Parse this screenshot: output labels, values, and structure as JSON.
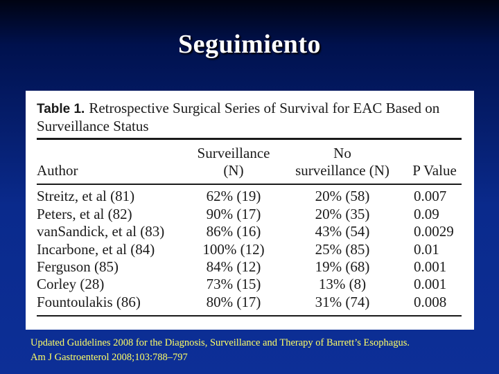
{
  "slide": {
    "title": "Seguimiento"
  },
  "table": {
    "label": "Table 1.",
    "caption": "Retrospective Surgical Series of Survival for EAC Based on Surveillance Status",
    "headers": {
      "author": "Author",
      "surveillance_line1": "Surveillance",
      "surveillance_line2": "(N)",
      "no_surveillance_line1": "No",
      "no_surveillance_line2": "surveillance (N)",
      "p_value": "P Value"
    },
    "rows": [
      {
        "author": "Streitz, et al (81)",
        "surveillance": "62% (19)",
        "no_surveillance": "20% (58)",
        "p_value": "0.007"
      },
      {
        "author": "Peters, et al (82)",
        "surveillance": "90% (17)",
        "no_surveillance": "20% (35)",
        "p_value": "0.09"
      },
      {
        "author": "vanSandick, et al (83)",
        "surveillance": "86% (16)",
        "no_surveillance": "43% (54)",
        "p_value": "0.0029"
      },
      {
        "author": "Incarbone, et al (84)",
        "surveillance": "100% (12)",
        "no_surveillance": "25% (85)",
        "p_value": "0.01"
      },
      {
        "author": "Ferguson (85)",
        "surveillance": "84% (12)",
        "no_surveillance": "19% (68)",
        "p_value": "0.001"
      },
      {
        "author": "Corley (28)",
        "surveillance": "73% (15)",
        "no_surveillance": "13% (8)",
        "p_value": "0.001"
      },
      {
        "author": "Fountoulakis (86)",
        "surveillance": "80% (17)",
        "no_surveillance": "31% (74)",
        "p_value": "0.008"
      }
    ]
  },
  "footnote": {
    "line1": "Updated Guidelines 2008 for the Diagnosis, Surveillance and Therapy of Barrett’s Esophagus.",
    "line2": "Am J Gastroenterol 2008;103:788–797"
  },
  "colors": {
    "title": "#ffffff",
    "footnote": "#ffff66",
    "panel": "#ffffff"
  }
}
